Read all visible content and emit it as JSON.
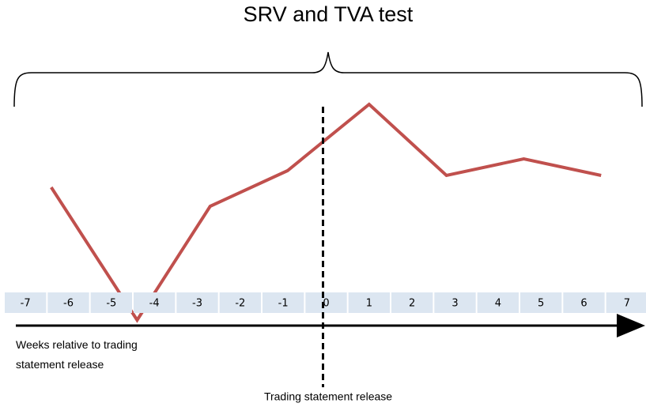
{
  "chart_data": {
    "type": "line",
    "title": "SRV and TVA  test",
    "x": [
      -6.4,
      -4.4,
      -2.7,
      -0.9,
      1,
      2.8,
      4.6,
      6.4
    ],
    "series": [
      {
        "color": "#c0504d",
        "values": [
          61,
          5,
          53,
          68,
          96,
          66,
          73,
          66
        ]
      }
    ],
    "xlim": [
      -7.5,
      7.5
    ],
    "xticks": [
      -7,
      -6,
      -5,
      -4,
      -3,
      -2,
      -1,
      0,
      1,
      2,
      3,
      4,
      5,
      6,
      7
    ],
    "ylim": [
      0,
      100
    ],
    "x_label": "Weeks relative to trading statement release",
    "annotation": "Trading statement release"
  }
}
